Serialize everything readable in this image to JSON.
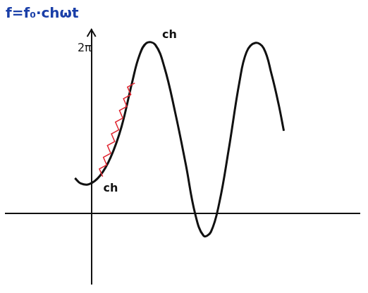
{
  "chart_data": {
    "type": "line",
    "title": "f=f₀·chωt",
    "x": [
      -0.77,
      -0.5,
      -0.1,
      0.4,
      0.9,
      1.4,
      1.9,
      2.23,
      2.57,
      2.97,
      3.4,
      3.9,
      4.4,
      4.83,
      5.23,
      5.57,
      5.97,
      6.4,
      6.9,
      7.23,
      7.63,
      8.03,
      8.4,
      8.73,
      8.97
    ],
    "values": [
      1.34,
      1.14,
      1.11,
      1.43,
      2.14,
      3.29,
      5.0,
      6.0,
      6.49,
      6.43,
      5.57,
      3.86,
      1.86,
      0,
      -0.86,
      -0.71,
      0.43,
      2.43,
      5.0,
      6.14,
      6.49,
      6.29,
      5.29,
      4.14,
      3.14
    ],
    "color": "#111111",
    "xlim": [
      -4,
      12.5
    ],
    "ylim": [
      -2.7,
      7
    ],
    "yticks": [
      {
        "value": 6.28,
        "label": "2π"
      }
    ],
    "tick_labels": "y",
    "grid": false,
    "annotations": [
      {
        "text": "ch",
        "x": 3.3,
        "y": 6.8
      },
      {
        "text": "ch",
        "x": 0.55,
        "y": 0.95
      }
    ]
  }
}
